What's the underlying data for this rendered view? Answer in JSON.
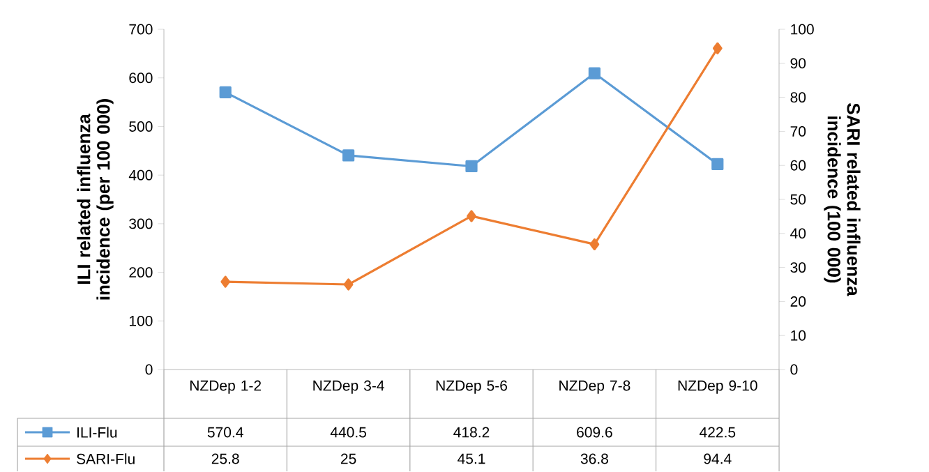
{
  "chart_data": {
    "type": "line",
    "categories": [
      "NZDep 1-2",
      "NZDep 3-4",
      "NZDep 5-6",
      "NZDep 7-8",
      "NZDep 9-10"
    ],
    "series": [
      {
        "name": "ILI-Flu",
        "color": "#5b9bd5",
        "marker": "square",
        "values": [
          570.4,
          440.5,
          418.2,
          609.6,
          422.5
        ]
      },
      {
        "name": "SARI-Flu",
        "color": "#ed7d31",
        "marker": "diamond",
        "axis": "y2",
        "values": [
          25.8,
          25,
          45.1,
          36.8,
          94.4
        ]
      }
    ],
    "ylabel": "ILI  related influenza incidence (per 100 000)",
    "y2label": "SARI related influenza incidence (100 000)",
    "ylim": [
      0,
      700
    ],
    "yticks": [
      0,
      100,
      200,
      300,
      400,
      500,
      600,
      700
    ],
    "y2lim": [
      0,
      100
    ],
    "y2ticks": [
      0,
      10,
      20,
      30,
      40,
      50,
      60,
      70,
      80,
      90,
      100
    ],
    "data_labels": true,
    "legend": "bottom",
    "grid": false
  }
}
